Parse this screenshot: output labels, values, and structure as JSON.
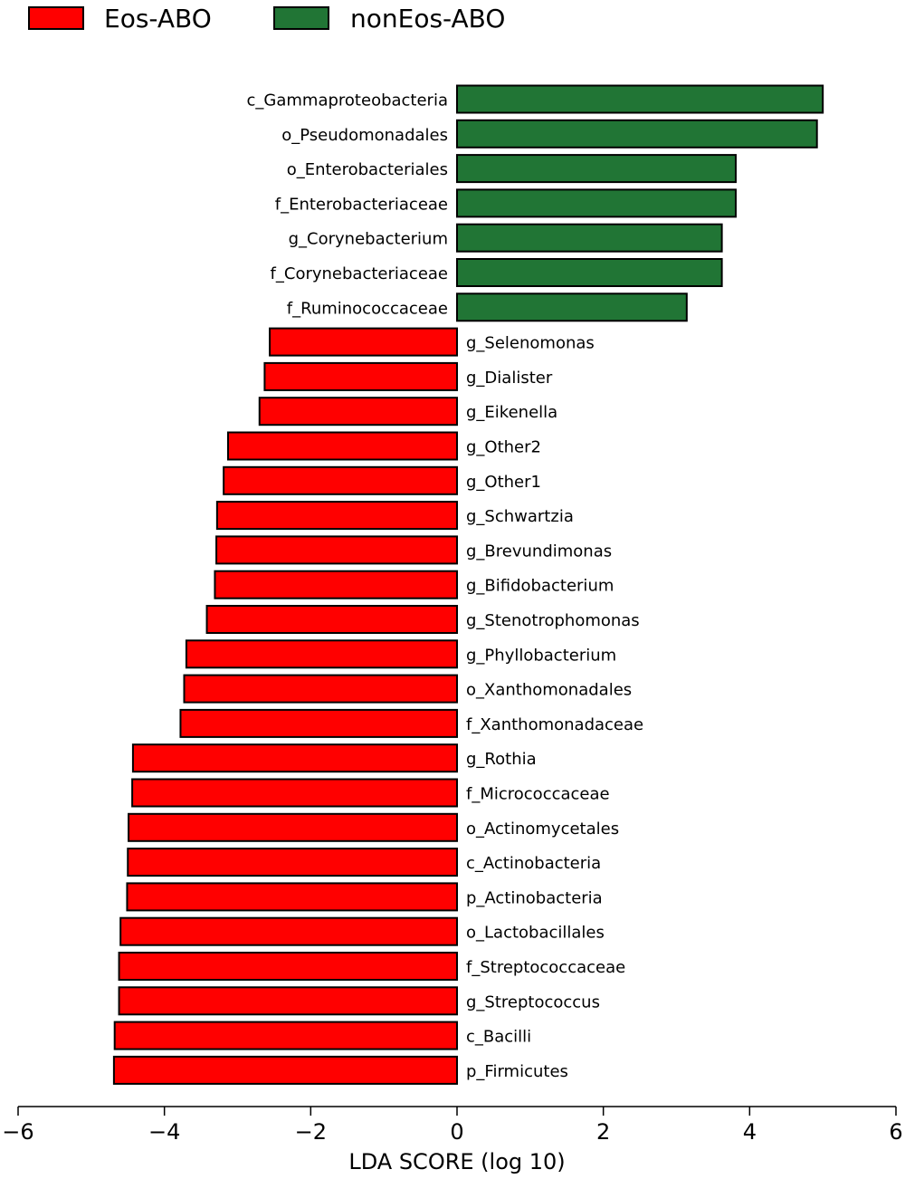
{
  "chart_data": {
    "type": "bar",
    "orientation": "horizontal",
    "title": "",
    "xlabel": "LDA SCORE (log 10)",
    "ylabel": "",
    "xlim": [
      -6,
      6
    ],
    "xticks": [
      -6,
      -4,
      -2,
      0,
      2,
      4,
      6
    ],
    "xtick_labels": [
      "−6",
      "−4",
      "−2",
      "0",
      "2",
      "4",
      "6"
    ],
    "legend_position": "top-left",
    "series": [
      {
        "name": "Eos-ABO",
        "color": "#ff0000"
      },
      {
        "name": "nonEos-ABO",
        "color": "#217535"
      }
    ],
    "bars": [
      {
        "label": "c_Gammaproteobacteria",
        "value": 5.0,
        "group": "nonEos-ABO"
      },
      {
        "label": "o_Pseudomonadales",
        "value": 4.92,
        "group": "nonEos-ABO"
      },
      {
        "label": "o_Enterobacteriales",
        "value": 3.81,
        "group": "nonEos-ABO"
      },
      {
        "label": "f_Enterobacteriaceae",
        "value": 3.81,
        "group": "nonEos-ABO"
      },
      {
        "label": "g_Corynebacterium",
        "value": 3.62,
        "group": "nonEos-ABO"
      },
      {
        "label": "f_Corynebacteriaceae",
        "value": 3.62,
        "group": "nonEos-ABO"
      },
      {
        "label": "f_Ruminococcaceae",
        "value": 3.14,
        "group": "nonEos-ABO"
      },
      {
        "label": "g_Selenomonas",
        "value": -2.56,
        "group": "Eos-ABO"
      },
      {
        "label": "g_Dialister",
        "value": -2.63,
        "group": "Eos-ABO"
      },
      {
        "label": "g_Eikenella",
        "value": -2.7,
        "group": "Eos-ABO"
      },
      {
        "label": "g_Other2",
        "value": -3.13,
        "group": "Eos-ABO"
      },
      {
        "label": "g_Other1",
        "value": -3.19,
        "group": "Eos-ABO"
      },
      {
        "label": "g_Schwartzia",
        "value": -3.28,
        "group": "Eos-ABO"
      },
      {
        "label": "g_Brevundimonas",
        "value": -3.29,
        "group": "Eos-ABO"
      },
      {
        "label": "g_Bifidobacterium",
        "value": -3.31,
        "group": "Eos-ABO"
      },
      {
        "label": "g_Stenotrophomonas",
        "value": -3.42,
        "group": "Eos-ABO"
      },
      {
        "label": "g_Phyllobacterium",
        "value": -3.7,
        "group": "Eos-ABO"
      },
      {
        "label": "o_Xanthomonadales",
        "value": -3.73,
        "group": "Eos-ABO"
      },
      {
        "label": "f_Xanthomonadaceae",
        "value": -3.78,
        "group": "Eos-ABO"
      },
      {
        "label": "g_Rothia",
        "value": -4.43,
        "group": "Eos-ABO"
      },
      {
        "label": "f_Micrococcaceae",
        "value": -4.44,
        "group": "Eos-ABO"
      },
      {
        "label": "o_Actinomycetales",
        "value": -4.49,
        "group": "Eos-ABO"
      },
      {
        "label": "c_Actinobacteria",
        "value": -4.5,
        "group": "Eos-ABO"
      },
      {
        "label": "p_Actinobacteria",
        "value": -4.51,
        "group": "Eos-ABO"
      },
      {
        "label": "o_Lactobacillales",
        "value": -4.6,
        "group": "Eos-ABO"
      },
      {
        "label": "f_Streptococcaceae",
        "value": -4.62,
        "group": "Eos-ABO"
      },
      {
        "label": "g_Streptococcus",
        "value": -4.62,
        "group": "Eos-ABO"
      },
      {
        "label": "c_Bacilli",
        "value": -4.68,
        "group": "Eos-ABO"
      },
      {
        "label": "p_Firmicutes",
        "value": -4.69,
        "group": "Eos-ABO"
      }
    ]
  }
}
